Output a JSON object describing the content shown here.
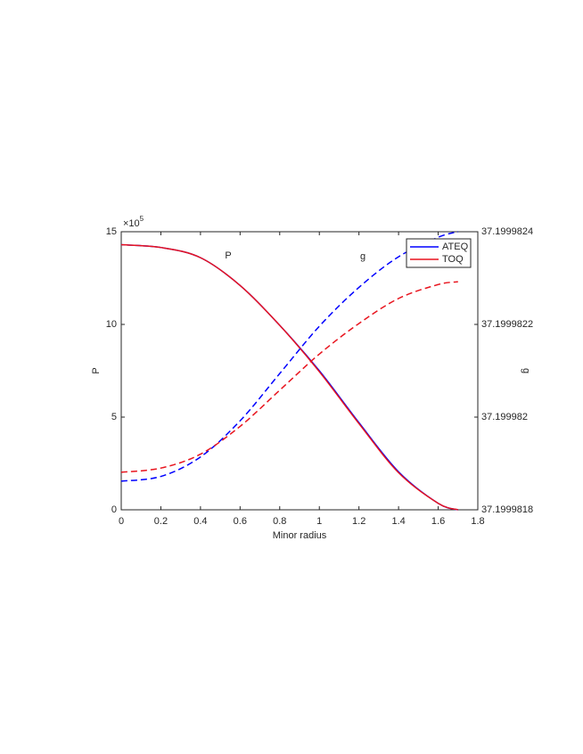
{
  "chart_data": {
    "type": "line",
    "x_label": "Minor radius",
    "y_label": "P",
    "y2_label": "g",
    "y_multiplier": "×10",
    "y_exponent": "5",
    "annotations": [
      "P",
      "g"
    ],
    "x": [
      0,
      0.2,
      0.4,
      0.6,
      0.8,
      1.0,
      1.2,
      1.4,
      1.6,
      1.7
    ],
    "xlim": [
      0,
      1.8
    ],
    "xticks": [
      0,
      0.2,
      0.4,
      0.6,
      0.8,
      1,
      1.2,
      1.4,
      1.6,
      1.8
    ],
    "ylim": [
      0,
      15
    ],
    "yticks": [
      0,
      5,
      10,
      15
    ],
    "y2lim": [
      37.1999818,
      37.1999824
    ],
    "y2ticks": [
      37.1999818,
      37.199982,
      37.1999822,
      37.1999824
    ],
    "legend": "northeast",
    "series": [
      {
        "name": "ATEQ",
        "color": "#0000ff",
        "style": "solid",
        "values": [
          14.3,
          14.15,
          13.6,
          12.1,
          9.95,
          7.5,
          4.7,
          2.05,
          0.35,
          0
        ]
      },
      {
        "name": "TOQ",
        "color": "#e8141e",
        "style": "solid",
        "values": [
          14.3,
          14.15,
          13.6,
          12.1,
          9.95,
          7.45,
          4.65,
          2.0,
          0.35,
          0
        ]
      },
      {
        "name": "ATEQ",
        "color": "#0000ff",
        "style": "dashed",
        "axis": "y2",
        "values": [
          37.1999818618,
          37.199981872,
          37.199981914,
          37.199981992,
          37.199982094,
          37.199982196,
          37.19998228,
          37.199982346,
          37.199982388,
          37.1999824
        ]
      },
      {
        "name": "TOQ",
        "color": "#e8141e",
        "style": "dashed",
        "axis": "y2",
        "values": [
          37.199981881,
          37.19998189,
          37.19998192,
          37.19998198,
          37.199982058,
          37.199982136,
          37.199982202,
          37.199982256,
          37.199982286,
          37.199982292
        ]
      }
    ]
  }
}
